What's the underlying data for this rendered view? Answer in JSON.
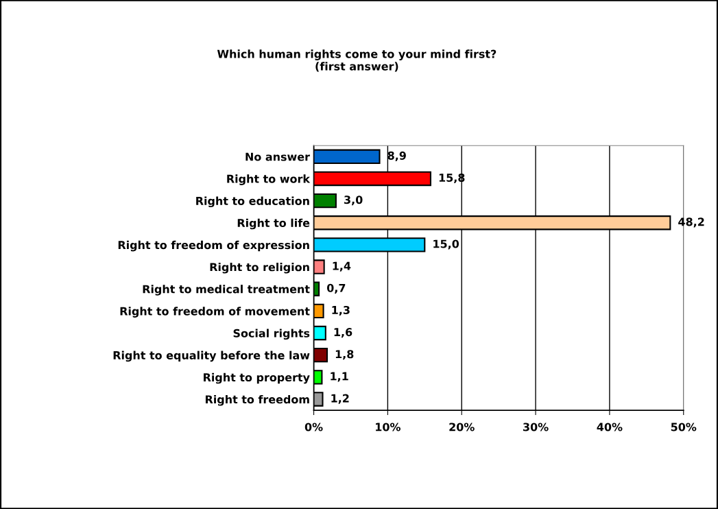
{
  "chart_data": {
    "type": "bar",
    "orientation": "horizontal",
    "title": "Which human rights come to your mind first?\n(first answer)",
    "categories": [
      "No answer",
      "Right to work",
      "Right to education",
      "Right to life",
      "Right to freedom of expression",
      "Right to religion",
      "Right to medical treatment",
      "Right to freedom of movement",
      "Social rights",
      "Right to equality before the law",
      "Right to property",
      "Right to freedom"
    ],
    "values": [
      8.9,
      15.8,
      3.0,
      48.2,
      15.0,
      1.4,
      0.7,
      1.3,
      1.6,
      1.8,
      1.1,
      1.2
    ],
    "colors": [
      "#0066cc",
      "#ff0000",
      "#008000",
      "#ffcc99",
      "#00ccff",
      "#ff8080",
      "#008000",
      "#ff9900",
      "#00ffff",
      "#800000",
      "#00ff00",
      "#999999"
    ],
    "value_labels": [
      "8,9",
      "15,8",
      "3,0",
      "48,2",
      "15,0",
      "1,4",
      "0,7",
      "1,3",
      "1,6",
      "1,8",
      "1,1",
      "1,2"
    ],
    "xlim": [
      0,
      50
    ],
    "xticks": [
      {
        "value": 0,
        "label": "0%"
      },
      {
        "value": 10,
        "label": "10%"
      },
      {
        "value": 20,
        "label": "20%"
      },
      {
        "value": 30,
        "label": "30%"
      },
      {
        "value": 40,
        "label": "40%"
      },
      {
        "value": 50,
        "label": "50%"
      }
    ],
    "grid": "x"
  }
}
